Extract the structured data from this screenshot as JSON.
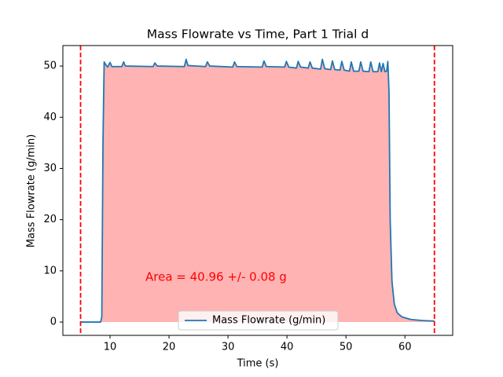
{
  "chart_data": {
    "type": "line",
    "title": "Mass Flowrate vs Time, Part 1 Trial d",
    "x_label": "Time (s)",
    "y_label": "Mass Flowrate (g/min)",
    "annotation": {
      "text": "Area = 40.96 +/- 0.08 g",
      "color": "#ff0000"
    },
    "x": [
      5,
      8.4,
      8.6,
      8.8,
      9.0,
      9.3,
      9.6,
      10.0,
      10.3,
      12,
      12.3,
      12.6,
      17.3,
      17.6,
      18,
      22.6,
      22.9,
      23.2,
      26.2,
      26.5,
      26.9,
      30.8,
      31.1,
      31.5,
      35.8,
      36.1,
      36.5,
      39.6,
      39.9,
      40.3,
      41.6,
      41.9,
      42.3,
      43.6,
      43.9,
      44.3,
      45.7,
      46.0,
      46.4,
      47.4,
      47.7,
      48.1,
      49.0,
      49.3,
      49.7,
      50.6,
      50.9,
      51.3,
      52.2,
      52.5,
      52.9,
      53.9,
      54.2,
      54.6,
      55.4,
      55.7,
      56.0,
      56.3,
      56.6,
      56.9,
      57.1,
      57.3,
      57.5,
      57.8,
      58.2,
      58.7,
      59.5,
      61,
      63,
      65
    ],
    "series": [
      {
        "name": "Mass Flowrate (g/min)",
        "color": "#1f77b4",
        "values": [
          0,
          0,
          1,
          35,
          50.8,
          50.2,
          49.8,
          50.7,
          49.9,
          49.9,
          50.8,
          50.0,
          49.9,
          50.6,
          50.0,
          49.9,
          51.3,
          50.1,
          49.9,
          50.8,
          50.0,
          49.8,
          50.8,
          49.9,
          49.8,
          51.0,
          49.9,
          49.8,
          50.9,
          49.8,
          49.6,
          50.9,
          49.8,
          49.6,
          50.8,
          49.6,
          49.4,
          51.3,
          49.5,
          49.3,
          51.0,
          49.3,
          49.2,
          50.9,
          49.2,
          49.0,
          50.8,
          49.0,
          49.0,
          50.8,
          49.0,
          48.9,
          50.8,
          48.9,
          48.9,
          50.6,
          48.9,
          50.5,
          48.9,
          49.0,
          50.9,
          45,
          20,
          8,
          3.5,
          1.8,
          1.0,
          0.5,
          0.3,
          0.2
        ]
      }
    ],
    "fill_color": "#ffb3b3",
    "vlines": [
      5,
      65
    ],
    "vline_color": "#ff0000",
    "xlim": [
      2,
      68.1
    ],
    "ylim": [
      -2.6,
      54
    ],
    "xticks": [
      10,
      20,
      30,
      40,
      50,
      60
    ],
    "yticks": [
      0,
      10,
      20,
      30,
      40,
      50
    ],
    "legend": "lower center"
  }
}
